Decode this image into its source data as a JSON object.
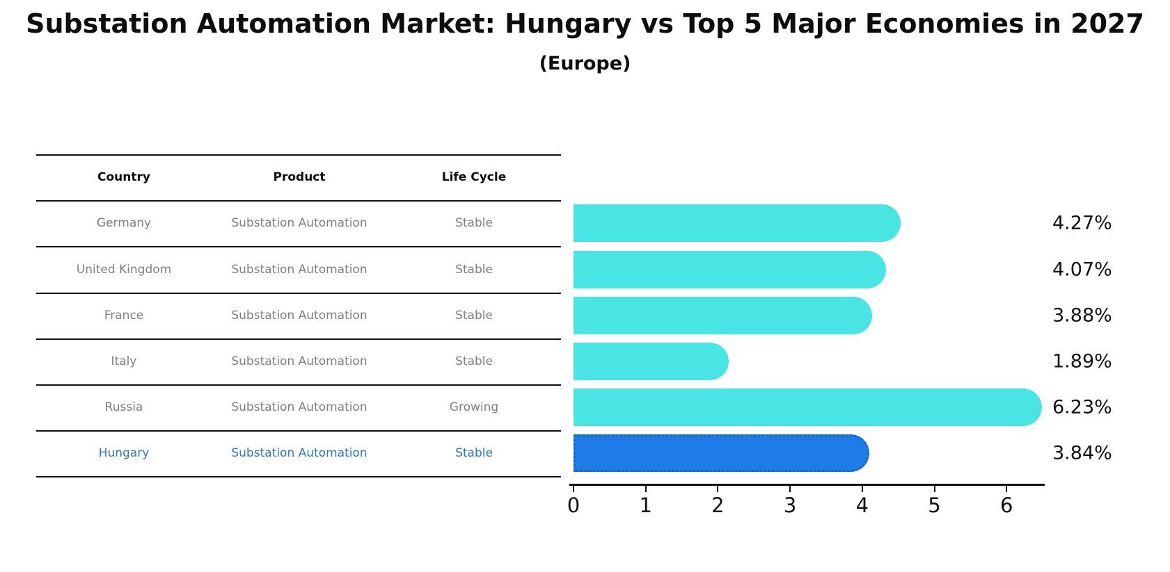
{
  "title": "Substation Automation Market: Hungary vs Top 5 Major Economies in 2027",
  "subtitle": "(Europe)",
  "table": {
    "headers": [
      "Country",
      "Product",
      "Life Cycle"
    ],
    "rows": [
      {
        "country": "Germany",
        "product": "Substation Automation",
        "life_cycle": "Stable",
        "highlight": false
      },
      {
        "country": "United Kingdom",
        "product": "Substation Automation",
        "life_cycle": "Stable",
        "highlight": false
      },
      {
        "country": "France",
        "product": "Substation Automation",
        "life_cycle": "Stable",
        "highlight": false
      },
      {
        "country": "Italy",
        "product": "Substation Automation",
        "life_cycle": "Stable",
        "highlight": false
      },
      {
        "country": "Russia",
        "product": "Substation Automation",
        "life_cycle": "Growing",
        "highlight": false
      },
      {
        "country": "Hungary",
        "product": "Substation Automation",
        "life_cycle": "Stable",
        "highlight": true
      }
    ]
  },
  "chart_data": {
    "type": "bar",
    "orientation": "horizontal",
    "title": "Substation Automation Market: Hungary vs Top 5 Major Economies in 2027",
    "subtitle": "(Europe)",
    "categories": [
      "Germany",
      "United Kingdom",
      "France",
      "Italy",
      "Russia",
      "Hungary"
    ],
    "values": [
      4.27,
      4.07,
      3.88,
      1.89,
      6.23,
      3.84
    ],
    "value_labels": [
      "4.27%",
      "4.07%",
      "3.88%",
      "1.89%",
      "6.23%",
      "3.84%"
    ],
    "x_ticks": [
      0,
      1,
      2,
      3,
      4,
      5,
      6
    ],
    "xlim": [
      0,
      6.53
    ],
    "grid": false,
    "legend": false,
    "highlight_index": 5,
    "highlight_style": "dotted-border"
  },
  "colors": {
    "bar": "#48e5e4",
    "highlight_bar": "#1e7be8",
    "highlight_border": "#1565cf",
    "highlight_text": "#2e78be",
    "table_text": "#7f7f7f",
    "ink": "#111111"
  }
}
